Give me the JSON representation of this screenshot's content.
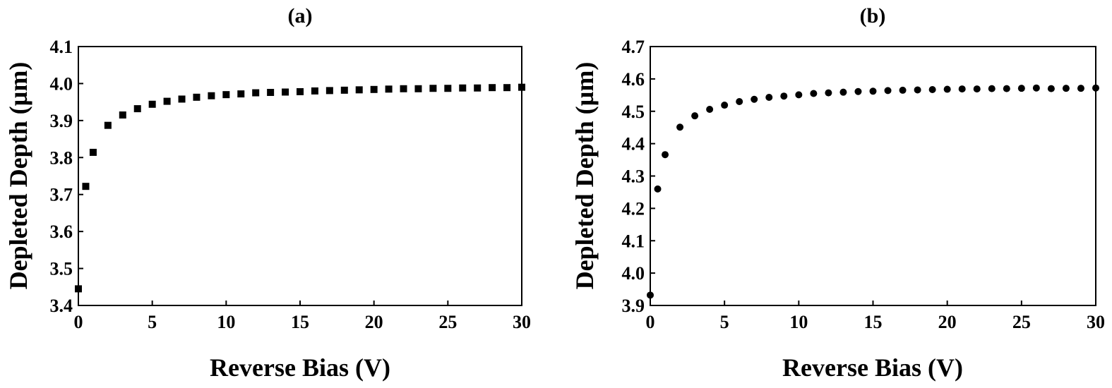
{
  "chart_data": [
    {
      "type": "scatter",
      "title": "(a)",
      "xlabel": "Reverse Bias (V)",
      "ylabel": "Depleted Depth (µm)",
      "xlim": [
        0,
        30
      ],
      "ylim": [
        3.4,
        4.1
      ],
      "xticks": [
        "0",
        "5",
        "10",
        "15",
        "20",
        "25",
        "30"
      ],
      "yticks": [
        "3.4",
        "3.5",
        "3.6",
        "3.7",
        "3.8",
        "3.9",
        "4.0",
        "4.1"
      ],
      "grid": false,
      "marker": "square",
      "color": "#000000",
      "x": [
        0,
        0.5,
        1,
        2,
        3,
        4,
        5,
        6,
        7,
        8,
        9,
        10,
        11,
        12,
        13,
        14,
        15,
        16,
        17,
        18,
        19,
        20,
        21,
        22,
        23,
        24,
        25,
        26,
        27,
        28,
        29,
        30
      ],
      "y": [
        3.445,
        3.722,
        3.814,
        3.887,
        3.915,
        3.932,
        3.944,
        3.952,
        3.958,
        3.963,
        3.967,
        3.97,
        3.972,
        3.975,
        3.976,
        3.977,
        3.978,
        3.98,
        3.981,
        3.982,
        3.983,
        3.984,
        3.985,
        3.986,
        3.986,
        3.987,
        3.987,
        3.988,
        3.988,
        3.989,
        3.989,
        3.99
      ]
    },
    {
      "type": "scatter",
      "title": "(b)",
      "xlabel": "Reverse Bias (V)",
      "ylabel": "Depleted Depth (µm)",
      "xlim": [
        0,
        30
      ],
      "ylim": [
        3.9,
        4.7
      ],
      "xticks": [
        "0",
        "5",
        "10",
        "15",
        "20",
        "25",
        "30"
      ],
      "yticks": [
        "3.9",
        "4.0",
        "4.1",
        "4.2",
        "4.3",
        "4.4",
        "4.5",
        "4.6",
        "4.7"
      ],
      "grid": false,
      "marker": "circle",
      "color": "#000000",
      "x": [
        0,
        0.5,
        1,
        2,
        3,
        4,
        5,
        6,
        7,
        8,
        9,
        10,
        11,
        12,
        13,
        14,
        15,
        16,
        17,
        18,
        19,
        20,
        21,
        22,
        23,
        24,
        25,
        26,
        27,
        28,
        29,
        30
      ],
      "y": [
        3.932,
        4.26,
        4.366,
        4.451,
        4.486,
        4.506,
        4.519,
        4.53,
        4.537,
        4.543,
        4.547,
        4.551,
        4.555,
        4.557,
        4.559,
        4.561,
        4.562,
        4.564,
        4.565,
        4.566,
        4.567,
        4.568,
        4.569,
        4.569,
        4.57,
        4.57,
        4.571,
        4.572,
        4.57,
        4.571,
        4.571,
        4.572
      ]
    }
  ]
}
